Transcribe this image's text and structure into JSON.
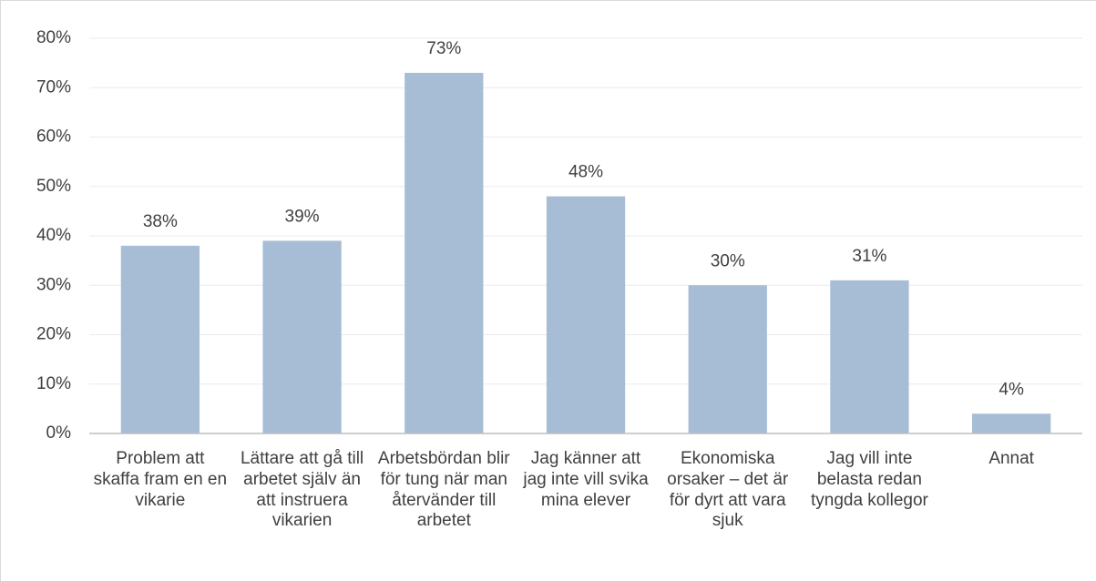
{
  "chart_data": {
    "type": "bar",
    "categories": [
      "Problem att skaffa fram en en vikarie",
      "Lättare att gå till arbetet själv än att instruera vikarien",
      "Arbetsbördan blir för tung när man återvänder till arbetet",
      "Jag känner att jag inte vill svika mina elever",
      "Ekonomiska orsaker – det är för dyrt att vara sjuk",
      "Jag vill inte belasta redan tyngda kollegor",
      "Annat"
    ],
    "values": [
      38,
      39,
      73,
      48,
      30,
      31,
      4
    ],
    "value_labels": [
      "38%",
      "39%",
      "73%",
      "48%",
      "30%",
      "31%",
      "4%"
    ],
    "color": "#a6bdd5",
    "ylim": [
      0,
      80
    ],
    "yticks": [
      {
        "value": 0,
        "label": "0%"
      },
      {
        "value": 10,
        "label": "10%"
      },
      {
        "value": 20,
        "label": "20%"
      },
      {
        "value": 30,
        "label": "30%"
      },
      {
        "value": 40,
        "label": "40%"
      },
      {
        "value": 50,
        "label": "50%"
      },
      {
        "value": 60,
        "label": "60%"
      },
      {
        "value": 70,
        "label": "70%"
      },
      {
        "value": 80,
        "label": "80%"
      }
    ],
    "grid": true
  }
}
